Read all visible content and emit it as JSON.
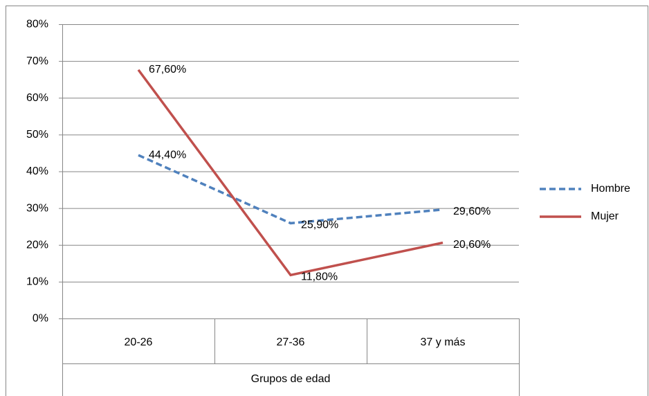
{
  "chart_data": {
    "type": "line",
    "x_label": "Grupos de edad",
    "categories": [
      "20-26",
      "27-36",
      "37 y más"
    ],
    "series": [
      {
        "name": "Hombre",
        "color": "#4f81bd",
        "line_style": "dashed",
        "values": [
          44.4,
          25.9,
          29.6
        ],
        "value_labels": [
          "44,40%",
          "25,90%",
          "29,60%"
        ]
      },
      {
        "name": "Mujer",
        "color": "#c0504d",
        "line_style": "solid",
        "values": [
          67.6,
          11.8,
          20.6
        ],
        "value_labels": [
          "67,60%",
          "11,80%",
          "20,60%"
        ]
      }
    ],
    "ylim": [
      0,
      80
    ],
    "yticks": [
      {
        "value": 0,
        "label": "0%"
      },
      {
        "value": 10,
        "label": "10%"
      },
      {
        "value": 20,
        "label": "20%"
      },
      {
        "value": 30,
        "label": "30%"
      },
      {
        "value": 40,
        "label": "40%"
      },
      {
        "value": 50,
        "label": "50%"
      },
      {
        "value": 60,
        "label": "60%"
      },
      {
        "value": 70,
        "label": "70%"
      },
      {
        "value": 80,
        "label": "80%"
      }
    ],
    "grid": true,
    "legend": "right"
  }
}
